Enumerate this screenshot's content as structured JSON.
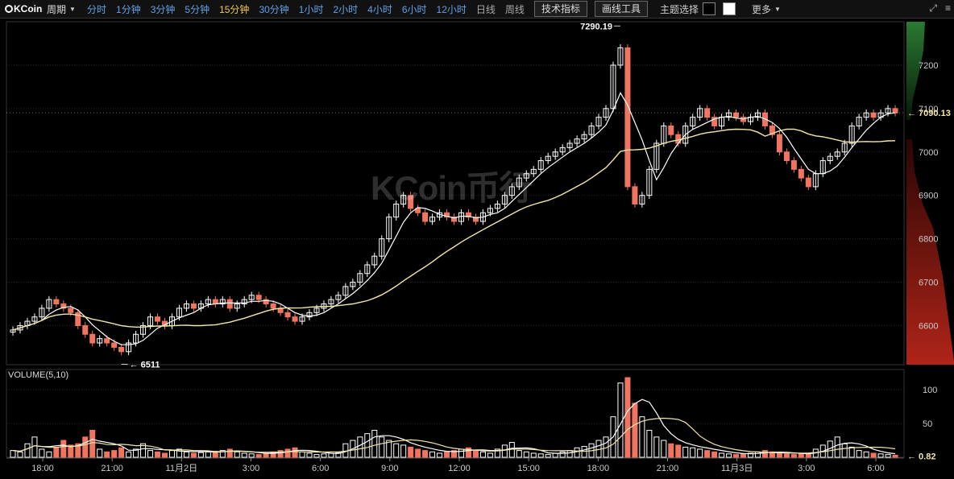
{
  "toolbar": {
    "logo_text": "KCoin",
    "period_label": "周期",
    "intervals": [
      "分时",
      "1分钟",
      "3分钟",
      "5分钟",
      "15分钟",
      "30分钟",
      "1小时",
      "2小时",
      "4小时",
      "6小时",
      "12小时",
      "日线",
      "周线"
    ],
    "active_interval": "15分钟",
    "indicators_button": "技术指标",
    "drawing_tools_button": "画线工具",
    "theme_label": "主题选择",
    "more_label": "更多",
    "icons": [
      "expand-icon",
      "menu-icon"
    ]
  },
  "watermark": "KCoin币行",
  "chart_data": [
    {
      "type": "candlestick",
      "price_axis_ticks": [
        6600,
        6700,
        6800,
        6900,
        7000,
        7100,
        7200
      ],
      "ylim": [
        6510,
        7300
      ],
      "high_label": "7290.19",
      "low_label": "6511",
      "current_price_label": "7090.13",
      "time_axis_ticks": [
        "18:00",
        "21:00",
        "11月2日",
        "3:00",
        "6:00",
        "9:00",
        "12:00",
        "15:00",
        "18:00",
        "21:00",
        "11月3日",
        "3:00",
        "6:00"
      ],
      "colors": {
        "up": "#ffffff",
        "down": "#f07560",
        "ma_fast": "#ffffff",
        "ma_slow": "#f3e7a8",
        "price_marker": "#f3e7a8"
      },
      "series": [
        {
          "name": "close",
          "values": [
            6590,
            6600,
            6610,
            6620,
            6640,
            6660,
            6650,
            6640,
            6630,
            6600,
            6580,
            6560,
            6570,
            6560,
            6550,
            6540,
            6560,
            6580,
            6600,
            6620,
            6610,
            6600,
            6620,
            6640,
            6650,
            6640,
            6650,
            6660,
            6650,
            6660,
            6640,
            6650,
            6660,
            6670,
            6660,
            6650,
            6640,
            6630,
            6620,
            6610,
            6620,
            6630,
            6640,
            6650,
            6660,
            6670,
            6690,
            6700,
            6720,
            6740,
            6760,
            6800,
            6850,
            6880,
            6900,
            6870,
            6860,
            6840,
            6850,
            6860,
            6850,
            6840,
            6860,
            6850,
            6840,
            6860,
            6870,
            6880,
            6900,
            6920,
            6940,
            6950,
            6960,
            6980,
            6990,
            7000,
            7010,
            7020,
            7030,
            7040,
            7060,
            7080,
            7100,
            7200,
            7240,
            6920,
            6880,
            6900,
            6960,
            7020,
            7060,
            7040,
            7020,
            7060,
            7080,
            7100,
            7080,
            7060,
            7080,
            7090,
            7080,
            7070,
            7080,
            7090,
            7060,
            7040,
            7000,
            6980,
            6960,
            6940,
            6920,
            6950,
            6980,
            6990,
            7000,
            7020,
            7060,
            7080,
            7090,
            7080,
            7090,
            7100,
            7090
          ]
        }
      ]
    },
    {
      "type": "bar",
      "title": "VOLUME(5,10)",
      "volume_axis_ticks": [
        50,
        100
      ],
      "ylim": [
        0,
        130
      ],
      "current_volume_label": "0.82",
      "series": [
        {
          "name": "volume",
          "values": [
            10,
            8,
            20,
            30,
            12,
            8,
            15,
            25,
            18,
            20,
            30,
            40,
            12,
            8,
            10,
            14,
            8,
            12,
            20,
            10,
            8,
            6,
            10,
            12,
            8,
            6,
            7,
            8,
            9,
            10,
            12,
            8,
            6,
            5,
            4,
            6,
            8,
            10,
            12,
            14,
            8,
            6,
            4,
            5,
            6,
            7,
            20,
            25,
            30,
            35,
            40,
            30,
            25,
            20,
            18,
            15,
            12,
            10,
            8,
            6,
            8,
            10,
            12,
            14,
            10,
            8,
            6,
            12,
            18,
            22,
            10,
            8,
            6,
            5,
            4,
            6,
            8,
            10,
            14,
            16,
            20,
            25,
            30,
            60,
            110,
            118,
            80,
            60,
            40,
            30,
            25,
            20,
            18,
            15,
            14,
            12,
            10,
            8,
            6,
            5,
            4,
            5,
            6,
            8,
            10,
            8,
            6,
            5,
            4,
            5,
            6,
            12,
            18,
            24,
            30,
            20,
            15,
            10,
            8,
            6,
            5,
            4,
            3
          ]
        }
      ]
    }
  ]
}
